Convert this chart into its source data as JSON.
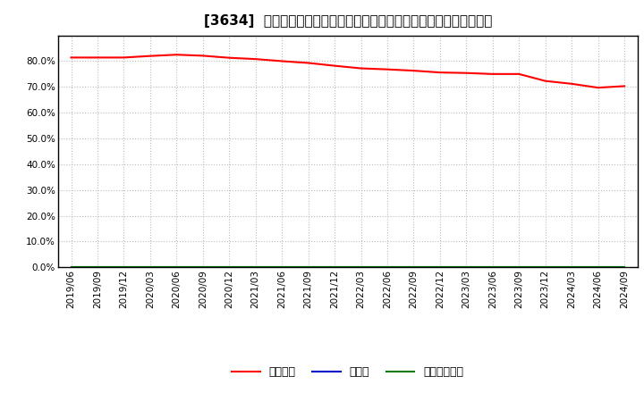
{
  "title": "[3634]  自己資本、のれん、繰延税金資産の総資産に対する比率の推移",
  "x_labels": [
    "2019/06",
    "2019/09",
    "2019/12",
    "2020/03",
    "2020/06",
    "2020/09",
    "2020/12",
    "2021/03",
    "2021/06",
    "2021/09",
    "2021/12",
    "2022/03",
    "2022/06",
    "2022/09",
    "2022/12",
    "2023/03",
    "2023/06",
    "2023/09",
    "2023/12",
    "2024/03",
    "2024/06",
    "2024/09"
  ],
  "equity_ratio": [
    0.814,
    0.814,
    0.814,
    0.82,
    0.825,
    0.821,
    0.813,
    0.808,
    0.8,
    0.793,
    0.782,
    0.772,
    0.768,
    0.763,
    0.756,
    0.754,
    0.75,
    0.75,
    0.723,
    0.712,
    0.697,
    0.703
  ],
  "goodwill_ratio": [
    0.0,
    0.0,
    0.0,
    0.0,
    0.0,
    0.0,
    0.0,
    0.0,
    0.0,
    0.0,
    0.0,
    0.0,
    0.0,
    0.0,
    0.0,
    0.0,
    0.0,
    0.0,
    0.0,
    0.0,
    0.0,
    0.0
  ],
  "deferred_tax_ratio": [
    0.0,
    0.0,
    0.0,
    0.0,
    0.0,
    0.0,
    0.0,
    0.0,
    0.0,
    0.0,
    0.0,
    0.0,
    0.0,
    0.0,
    0.0,
    0.0,
    0.0,
    0.0,
    0.0,
    0.0,
    0.0,
    0.0
  ],
  "equity_color": "#ff0000",
  "goodwill_color": "#0000cc",
  "deferred_tax_color": "#007700",
  "equity_label": "自己資本",
  "goodwill_label": "のれん",
  "deferred_tax_label": "繰延税金資産",
  "ylim_min": 0.0,
  "ylim_max": 0.9,
  "yticks": [
    0.0,
    0.1,
    0.2,
    0.3,
    0.4,
    0.5,
    0.6,
    0.7,
    0.8
  ],
  "background_color": "#ffffff",
  "plot_bg_color": "#ffffff",
  "grid_color": "#bbbbbb",
  "title_fontsize": 11,
  "legend_fontsize": 9,
  "tick_fontsize": 7.5
}
